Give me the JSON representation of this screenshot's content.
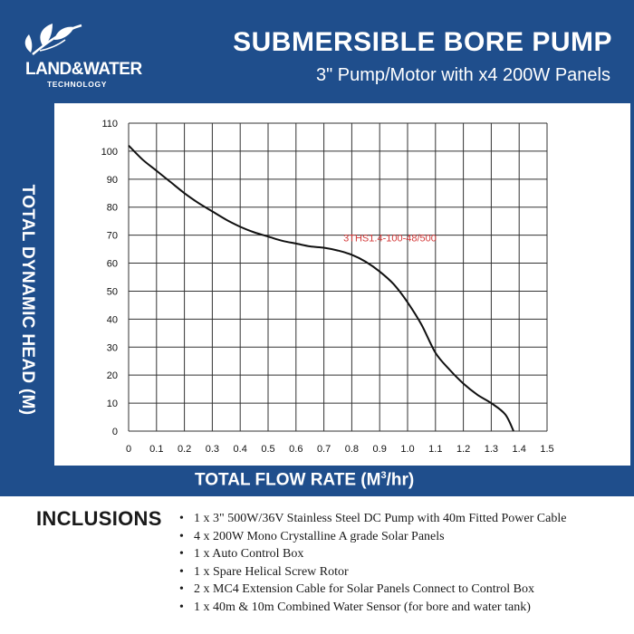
{
  "header": {
    "logo_name": "LAND&WATER",
    "logo_sub": "TECHNOLOGY",
    "title": "SUBMERSIBLE BORE PUMP",
    "subtitle": "3\" Pump/Motor with x4 200W Panels"
  },
  "colors": {
    "brand": "#1f4e8c",
    "curve": "#111111",
    "curve_label": "#d43a3a",
    "grid": "#333333"
  },
  "chart_data": {
    "type": "line",
    "title": "",
    "xlabel": "TOTAL FLOW RATE (M³/hr)",
    "xlabel_main": "TOTAL FLOW RATE (M",
    "xlabel_sup": "3",
    "xlabel_tail": "/hr)",
    "ylabel": "TOTAL DYNAMIC HEAD (M)",
    "xlim": [
      0,
      1.5
    ],
    "ylim": [
      0,
      110
    ],
    "x_ticks": [
      "0",
      "0.1",
      "0.2",
      "0.3",
      "0.4",
      "0.5",
      "0.6",
      "0.7",
      "0.8",
      "0.9",
      "1.0",
      "1.1",
      "1.2",
      "1.3",
      "1.4",
      "1.5"
    ],
    "y_ticks": [
      "0",
      "10",
      "20",
      "30",
      "40",
      "50",
      "60",
      "70",
      "80",
      "90",
      "100",
      "110"
    ],
    "grid": true,
    "series": [
      {
        "name": "3THS1.4-100-48/500",
        "x": [
          0,
          0.05,
          0.1,
          0.15,
          0.2,
          0.25,
          0.3,
          0.35,
          0.4,
          0.45,
          0.5,
          0.55,
          0.6,
          0.65,
          0.7,
          0.75,
          0.8,
          0.85,
          0.9,
          0.95,
          1.0,
          1.05,
          1.1,
          1.15,
          1.2,
          1.25,
          1.3,
          1.35,
          1.38
        ],
        "y": [
          102,
          97,
          93,
          89,
          85,
          81.5,
          78.5,
          75.5,
          73,
          71,
          69.5,
          68,
          67,
          66,
          65.5,
          64.5,
          63,
          60.5,
          57,
          52.5,
          46,
          38,
          28,
          22,
          17,
          13,
          10,
          6,
          0
        ]
      }
    ]
  },
  "inclusions": {
    "title": "INCLUSIONS",
    "items": [
      "1 x 3\" 500W/36V Stainless Steel DC Pump with 40m Fitted Power Cable",
      "4 x 200W Mono Crystalline A grade Solar Panels",
      "1 x Auto Control Box",
      "1 x Spare Helical Screw Rotor",
      "2 x MC4 Extension Cable for Solar Panels Connect to Control Box",
      "1 x 40m & 10m Combined Water Sensor (for bore and water tank)"
    ]
  }
}
